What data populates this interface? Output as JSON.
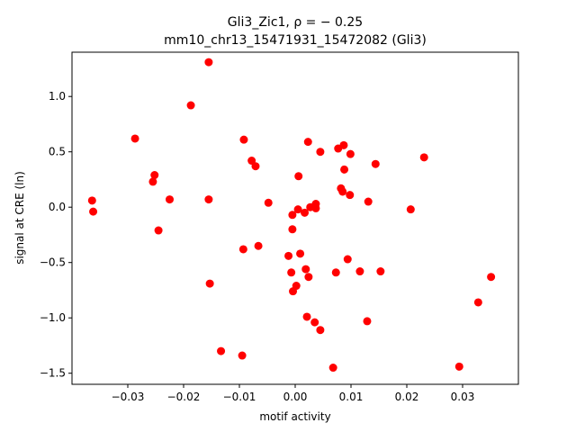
{
  "chart_data": {
    "type": "scatter",
    "title_line1": "Gli3_Zic1, ρ = − 0.25",
    "title_line2": "mm10_chr13_15471931_15472082 (Gli3)",
    "xlabel": "motif activity",
    "ylabel": "signal at CRE (ln)",
    "xlim": [
      -0.04,
      0.04
    ],
    "ylim": [
      -1.6,
      1.4
    ],
    "xticks": [
      -0.03,
      -0.02,
      -0.01,
      0.0,
      0.01,
      0.02,
      0.03
    ],
    "xtick_labels": [
      "−0.03",
      "−0.02",
      "−0.01",
      "0.00",
      "0.01",
      "0.02",
      "0.03"
    ],
    "yticks": [
      -1.5,
      -1.0,
      -0.5,
      0.0,
      0.5,
      1.0
    ],
    "ytick_labels": [
      "−1.5",
      "−1.0",
      "−0.5",
      "0.0",
      "0.5",
      "1.0"
    ],
    "marker_color": "#ff0000",
    "grid": false,
    "points": [
      {
        "x": -0.0364,
        "y": 0.06
      },
      {
        "x": -0.0362,
        "y": -0.04
      },
      {
        "x": -0.0287,
        "y": 0.62
      },
      {
        "x": -0.0252,
        "y": 0.29
      },
      {
        "x": -0.0255,
        "y": 0.23
      },
      {
        "x": -0.0245,
        "y": -0.21
      },
      {
        "x": -0.0225,
        "y": 0.07
      },
      {
        "x": -0.0187,
        "y": 0.92
      },
      {
        "x": -0.0155,
        "y": 1.31
      },
      {
        "x": -0.0155,
        "y": 0.07
      },
      {
        "x": -0.0153,
        "y": -0.69
      },
      {
        "x": -0.0133,
        "y": -1.3
      },
      {
        "x": -0.0095,
        "y": -1.34
      },
      {
        "x": -0.0092,
        "y": 0.61
      },
      {
        "x": -0.0093,
        "y": -0.38
      },
      {
        "x": -0.0078,
        "y": 0.42
      },
      {
        "x": -0.0071,
        "y": 0.37
      },
      {
        "x": -0.0066,
        "y": -0.35
      },
      {
        "x": -0.0048,
        "y": 0.04
      },
      {
        "x": -0.0012,
        "y": -0.44
      },
      {
        "x": -0.0007,
        "y": -0.59
      },
      {
        "x": -0.0005,
        "y": -0.07
      },
      {
        "x": -0.0005,
        "y": -0.2
      },
      {
        "x": -0.0004,
        "y": -0.76
      },
      {
        "x": 0.0002,
        "y": -0.71
      },
      {
        "x": 0.0006,
        "y": 0.28
      },
      {
        "x": 0.0005,
        "y": -0.02
      },
      {
        "x": 0.0009,
        "y": -0.42
      },
      {
        "x": 0.0017,
        "y": -0.05
      },
      {
        "x": 0.0019,
        "y": -0.56
      },
      {
        "x": 0.0021,
        "y": -0.99
      },
      {
        "x": 0.0024,
        "y": -0.63
      },
      {
        "x": 0.0023,
        "y": 0.59
      },
      {
        "x": 0.0027,
        "y": 0.0
      },
      {
        "x": 0.0035,
        "y": -1.04
      },
      {
        "x": 0.0037,
        "y": 0.03
      },
      {
        "x": 0.0037,
        "y": -0.01
      },
      {
        "x": 0.0045,
        "y": 0.5
      },
      {
        "x": 0.0045,
        "y": -1.11
      },
      {
        "x": 0.0068,
        "y": -1.45
      },
      {
        "x": 0.0073,
        "y": -0.59
      },
      {
        "x": 0.0077,
        "y": 0.53
      },
      {
        "x": 0.0082,
        "y": 0.17
      },
      {
        "x": 0.0085,
        "y": 0.14
      },
      {
        "x": 0.0087,
        "y": 0.56
      },
      {
        "x": 0.0088,
        "y": 0.34
      },
      {
        "x": 0.0094,
        "y": -0.47
      },
      {
        "x": 0.0098,
        "y": 0.11
      },
      {
        "x": 0.0099,
        "y": 0.48
      },
      {
        "x": 0.0116,
        "y": -0.58
      },
      {
        "x": 0.0131,
        "y": 0.05
      },
      {
        "x": 0.0129,
        "y": -1.03
      },
      {
        "x": 0.0144,
        "y": 0.39
      },
      {
        "x": 0.0153,
        "y": -0.58
      },
      {
        "x": 0.0207,
        "y": -0.02
      },
      {
        "x": 0.0231,
        "y": 0.45
      },
      {
        "x": 0.0294,
        "y": -1.44
      },
      {
        "x": 0.0328,
        "y": -0.86
      },
      {
        "x": 0.0351,
        "y": -0.63
      }
    ]
  }
}
